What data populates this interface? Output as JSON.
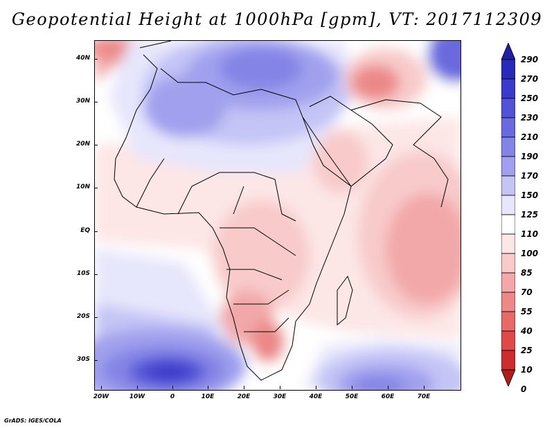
{
  "title": "Geopotential Height at 1000hPa [gpm], VT: 2017112309",
  "credit": "GrADS: IGES/COLA",
  "map": {
    "lat_labels": [
      "40N",
      "30N",
      "20N",
      "10N",
      "EQ",
      "10S",
      "20S",
      "30S"
    ],
    "lon_labels": [
      "20W",
      "10W",
      "0",
      "10E",
      "20E",
      "30E",
      "40E",
      "50E",
      "60E",
      "70E"
    ]
  },
  "legend": {
    "labels": [
      "290",
      "270",
      "250",
      "230",
      "210",
      "190",
      "170",
      "150",
      "125",
      "110",
      "100",
      "85",
      "70",
      "55",
      "40",
      "25",
      "10",
      "0"
    ],
    "colors": [
      "#2020a0",
      "#2a2ab8",
      "#3a3acc",
      "#5252d6",
      "#6a6ade",
      "#8484e6",
      "#a0a0ee",
      "#c4c4f6",
      "#e6e6fc",
      "#ffffff",
      "#fde6e6",
      "#f8caca",
      "#f2a8a8",
      "#ec8888",
      "#e66a6a",
      "#de4a4a",
      "#cc2e2e",
      "#b01c1c"
    ]
  }
}
